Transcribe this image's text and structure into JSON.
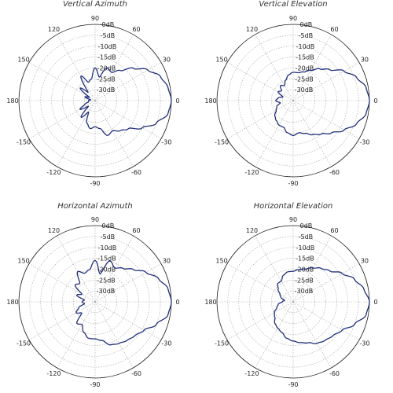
{
  "line_color": "#1f2f7a",
  "chart_data": [
    {
      "type": "polar",
      "title": "Vertical Azimuth",
      "angle_ticks": [
        "0",
        "30",
        "60",
        "90",
        "120",
        "150",
        "180",
        "-150",
        "-120",
        "-90",
        "-60",
        "-30"
      ],
      "radial_ticks": [
        "0dB",
        "-5dB",
        "-10dB",
        "-15dB",
        "-20dB",
        "-25dB",
        "-30dB"
      ],
      "rlim": [
        -35,
        0
      ],
      "grid": true,
      "series": [
        {
          "theta": [
            0,
            10,
            20,
            30,
            40,
            50,
            60,
            70,
            80,
            90,
            100,
            110,
            120,
            130,
            140,
            150,
            160,
            170,
            180,
            190,
            200,
            210,
            220,
            230,
            240,
            250,
            260,
            270,
            280,
            290,
            300,
            310,
            320,
            330,
            340,
            350
          ],
          "r": [
            0,
            -1,
            -3,
            -7,
            -12,
            -17,
            -20,
            -19,
            -24,
            -20,
            -25,
            -26,
            -22,
            -30,
            -26,
            -32,
            -30,
            -33,
            -32,
            -32,
            -30,
            -27,
            -31,
            -25,
            -29,
            -24,
            -22,
            -23,
            -22,
            -18,
            -19,
            -17,
            -15,
            -10,
            -5,
            -1
          ]
        }
      ]
    },
    {
      "type": "polar",
      "title": "Vertical Elevation",
      "angle_ticks": [
        "0",
        "30",
        "60",
        "90",
        "120",
        "150",
        "180",
        "-150",
        "-120",
        "-90",
        "-60",
        "-30"
      ],
      "radial_ticks": [
        "0dB",
        "-5dB",
        "-10dB",
        "-15dB",
        "-20dB",
        "-25dB",
        "-30dB"
      ],
      "rlim": [
        -35,
        0
      ],
      "grid": true,
      "series": [
        {
          "theta": [
            0,
            10,
            20,
            30,
            40,
            50,
            60,
            70,
            80,
            90,
            100,
            110,
            120,
            130,
            140,
            150,
            160,
            170,
            180,
            190,
            200,
            210,
            220,
            230,
            240,
            250,
            260,
            270,
            280,
            290,
            300,
            310,
            320,
            330,
            340,
            350
          ],
          "r": [
            0,
            -1,
            -4,
            -8,
            -13,
            -16,
            -19,
            -21,
            -22,
            -22,
            -23,
            -25,
            -27,
            -26,
            -28,
            -27,
            -30,
            -28,
            -27,
            -29,
            -27,
            -26,
            -24,
            -23,
            -22,
            -22,
            -20,
            -19,
            -20,
            -19,
            -17,
            -15,
            -12,
            -8,
            -4,
            -1
          ]
        }
      ]
    },
    {
      "type": "polar",
      "title": "Horizontal Azimuth",
      "angle_ticks": [
        "0",
        "30",
        "60",
        "90",
        "120",
        "150",
        "180",
        "-150",
        "-120",
        "-90",
        "-60",
        "-30"
      ],
      "radial_ticks": [
        "0dB",
        "-5dB",
        "-10dB",
        "-15dB",
        "-20dB",
        "-25dB",
        "-30dB"
      ],
      "rlim": [
        -35,
        0
      ],
      "grid": true,
      "series": [
        {
          "theta": [
            0,
            10,
            20,
            30,
            40,
            50,
            60,
            70,
            80,
            90,
            100,
            110,
            120,
            130,
            140,
            150,
            160,
            170,
            180,
            190,
            200,
            210,
            220,
            230,
            240,
            250,
            260,
            270,
            280,
            290,
            300,
            310,
            320,
            330,
            340,
            350
          ],
          "r": [
            0,
            -1,
            -4,
            -8,
            -12,
            -15,
            -17,
            -15,
            -22,
            -16,
            -20,
            -21,
            -19,
            -24,
            -23,
            -28,
            -26,
            -30,
            -29,
            -30,
            -27,
            -25,
            -27,
            -22,
            -23,
            -20,
            -18,
            -18,
            -17,
            -14,
            -13,
            -12,
            -11,
            -9,
            -5,
            -1
          ]
        }
      ]
    },
    {
      "type": "polar",
      "title": "Horizontal Elevation",
      "angle_ticks": [
        "0",
        "30",
        "60",
        "90",
        "120",
        "150",
        "180",
        "-150",
        "-120",
        "-90",
        "-60",
        "-30"
      ],
      "radial_ticks": [
        "0dB",
        "-5dB",
        "-10dB",
        "-15dB",
        "-20dB",
        "-25dB",
        "-30dB"
      ],
      "rlim": [
        -35,
        0
      ],
      "grid": true,
      "series": [
        {
          "theta": [
            0,
            10,
            20,
            30,
            40,
            50,
            60,
            70,
            80,
            90,
            100,
            110,
            120,
            130,
            140,
            150,
            160,
            170,
            180,
            190,
            200,
            210,
            220,
            230,
            240,
            250,
            260,
            270,
            280,
            290,
            300,
            310,
            320,
            330,
            340,
            350
          ],
          "r": [
            0,
            -2,
            -5,
            -9,
            -13,
            -15,
            -17,
            -19,
            -20,
            -21,
            -21,
            -22,
            -24,
            -24,
            -26,
            -28,
            -29,
            -31,
            -30,
            -28,
            -27,
            -25,
            -24,
            -22,
            -21,
            -20,
            -18,
            -17,
            -16,
            -15,
            -13,
            -12,
            -11,
            -9,
            -5,
            -1
          ]
        }
      ]
    }
  ]
}
